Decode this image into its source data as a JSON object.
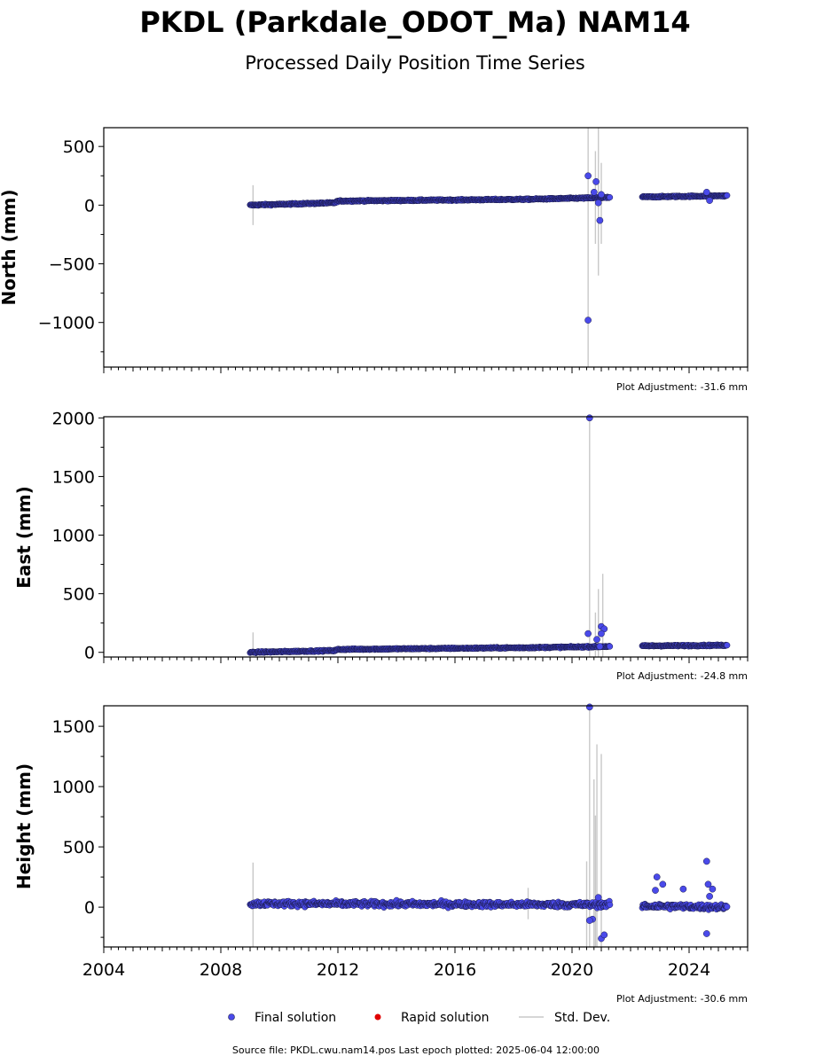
{
  "figure": {
    "title": "PKDL (Parkdale_ODOT_Ma) NAM14",
    "subtitle": "Processed Daily Position Time Series",
    "footer": "Source file: PKDL.cwu.nam14.pos  Last epoch plotted: 2025-06-04 12:00:00"
  },
  "legend": {
    "final_label": "Final solution",
    "rapid_label": "Rapid solution",
    "std_label": "Std. Dev."
  },
  "colors": {
    "final": "#4a4aea",
    "final_edge": "#1a1a4a",
    "rapid": "#e00000",
    "std": "#c8c8c8"
  },
  "chart_data": [
    {
      "type": "scatter",
      "ylabel": "North (mm)",
      "adjustment": "Plot Adjustment: -31.6 mm",
      "xlim": [
        2004.0,
        2026.0
      ],
      "ylim": [
        -1380,
        660
      ],
      "yticks": [
        500,
        0,
        -500,
        -1000
      ],
      "ytick_labels": [
        "500",
        "0",
        "−500",
        "−1000"
      ],
      "trend": [
        [
          2009.0,
          0
        ],
        [
          2011.9,
          20
        ],
        [
          2012.0,
          35
        ],
        [
          2018.5,
          50
        ],
        [
          2021.3,
          65
        ],
        [
          2022.4,
          70
        ],
        [
          2025.3,
          80
        ]
      ],
      "outliers": [
        [
          2020.55,
          -980
        ],
        [
          2020.55,
          250
        ],
        [
          2020.82,
          200
        ],
        [
          2020.75,
          110
        ],
        [
          2021.0,
          90
        ],
        [
          2020.95,
          -130
        ],
        [
          2020.9,
          20
        ],
        [
          2024.7,
          40
        ],
        [
          2024.6,
          110
        ]
      ],
      "stdbars": [
        [
          2009.1,
          -170,
          170
        ],
        [
          2020.55,
          -1390,
          660
        ],
        [
          2020.8,
          -330,
          460
        ],
        [
          2020.9,
          -600,
          660
        ],
        [
          2021.0,
          -330,
          360
        ]
      ]
    },
    {
      "type": "scatter",
      "ylabel": "East (mm)",
      "adjustment": "Plot Adjustment: -24.8 mm",
      "xlim": [
        2004.0,
        2026.0
      ],
      "ylim": [
        -40,
        2010
      ],
      "yticks": [
        2000,
        1500,
        1000,
        500,
        0
      ],
      "ytick_labels": [
        "2000",
        "1500",
        "1000",
        "500",
        "0"
      ],
      "trend": [
        [
          2009.0,
          0
        ],
        [
          2011.9,
          15
        ],
        [
          2012.0,
          25
        ],
        [
          2018.5,
          40
        ],
        [
          2021.3,
          50
        ],
        [
          2022.4,
          55
        ],
        [
          2025.3,
          60
        ]
      ],
      "outliers": [
        [
          2020.6,
          2000
        ],
        [
          2020.55,
          160
        ],
        [
          2021.0,
          220
        ],
        [
          2021.1,
          200
        ],
        [
          2021.0,
          160
        ],
        [
          2020.85,
          110
        ],
        [
          2020.95,
          50
        ]
      ],
      "stdbars": [
        [
          2009.1,
          -30,
          170
        ],
        [
          2020.6,
          -40,
          2010
        ],
        [
          2020.8,
          -40,
          340
        ],
        [
          2020.9,
          -40,
          540
        ],
        [
          2021.05,
          -40,
          670
        ]
      ]
    },
    {
      "type": "scatter",
      "ylabel": "Height (mm)",
      "adjustment": "Plot Adjustment: -30.6 mm",
      "xlim": [
        2004.0,
        2026.0
      ],
      "ylim": [
        -330,
        1670
      ],
      "yticks": [
        1500,
        1000,
        500,
        0
      ],
      "ytick_labels": [
        "1500",
        "1000",
        "500",
        "0"
      ],
      "xticks": [
        2004,
        2008,
        2012,
        2016,
        2020,
        2024
      ],
      "xtick_labels": [
        "2004",
        "2008",
        "2012",
        "2016",
        "2020",
        "2024"
      ],
      "trend": [
        [
          2009.0,
          30
        ],
        [
          2021.3,
          20
        ],
        [
          2022.4,
          10
        ],
        [
          2025.3,
          0
        ]
      ],
      "outliers": [
        [
          2020.6,
          1660
        ],
        [
          2022.9,
          250
        ],
        [
          2023.1,
          190
        ],
        [
          2022.85,
          140
        ],
        [
          2023.8,
          150
        ],
        [
          2024.6,
          380
        ],
        [
          2024.65,
          190
        ],
        [
          2024.8,
          150
        ],
        [
          2024.7,
          90
        ],
        [
          2024.6,
          -220
        ],
        [
          2021.0,
          -260
        ],
        [
          2021.1,
          -230
        ],
        [
          2020.7,
          -100
        ],
        [
          2020.6,
          -110
        ],
        [
          2020.9,
          80
        ]
      ],
      "stdbars": [
        [
          2009.1,
          -330,
          370
        ],
        [
          2018.5,
          -100,
          160
        ],
        [
          2020.5,
          -330,
          380
        ],
        [
          2020.6,
          -330,
          1670
        ],
        [
          2020.75,
          -330,
          1060
        ],
        [
          2020.85,
          -330,
          1350
        ],
        [
          2021.0,
          -330,
          1270
        ],
        [
          2020.8,
          -330,
          760
        ]
      ]
    }
  ]
}
